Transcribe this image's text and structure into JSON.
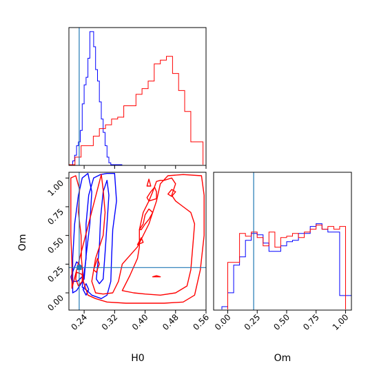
{
  "figure": {
    "background": "#ffffff"
  },
  "colors": {
    "blue": "#0000ff",
    "red": "#ff0000",
    "truth": "#1f77b4",
    "axis": "#000000"
  },
  "chart_data": [
    {
      "type": "histogram",
      "panel": "H0 marginal",
      "xlim": [
        0.2,
        0.56
      ],
      "truth": 0.227,
      "series": [
        {
          "name": "",
          "color": "#0000ff",
          "bin_edges": [
            0.2,
            0.205,
            0.21,
            0.215,
            0.22,
            0.225,
            0.23,
            0.235,
            0.24,
            0.245,
            0.25,
            0.255,
            0.26,
            0.265,
            0.27,
            0.275,
            0.28,
            0.285,
            0.29,
            0.295,
            0.3,
            0.305,
            0.31,
            0.315,
            0.32,
            0.325,
            0.33,
            0.335,
            0.34
          ],
          "counts": [
            0,
            0,
            2,
            5,
            10,
            12,
            18,
            32,
            42,
            46,
            56,
            70,
            70,
            62,
            50,
            44,
            33,
            24,
            17,
            10,
            4,
            1,
            0,
            0,
            0,
            0,
            0,
            0
          ]
        },
        {
          "name": "",
          "color": "#ff0000",
          "bin_edges": [
            0.2,
            0.216,
            0.232,
            0.248,
            0.264,
            0.28,
            0.296,
            0.312,
            0.328,
            0.344,
            0.36,
            0.376,
            0.392,
            0.408,
            0.424,
            0.44,
            0.456,
            0.472,
            0.488,
            0.504,
            0.52,
            0.536,
            0.552
          ],
          "counts": [
            0,
            4,
            10,
            10,
            15,
            19,
            21,
            24,
            25,
            31,
            31,
            37,
            40,
            44,
            53,
            55,
            57,
            48,
            39,
            28,
            12,
            12
          ]
        }
      ]
    },
    {
      "type": "contour",
      "panel": "H0 vs Om",
      "xlabel": "H0",
      "ylabel": "Om",
      "xlim": [
        0.2,
        0.56
      ],
      "ylim": [
        -0.15,
        1.05
      ],
      "xticks": [
        "0.24",
        "0.32",
        "0.40",
        "0.48",
        "0.56"
      ],
      "yticks": [
        "0.00",
        "0.25",
        "0.50",
        "0.75",
        "1.00"
      ],
      "truth": {
        "x": 0.227,
        "y": 0.22
      },
      "series": [
        {
          "name": "",
          "color": "#0000ff",
          "contours": [
            [
              [
                0.21,
                0.0
              ],
              [
                0.21,
                0.3
              ],
              [
                0.215,
                0.6
              ],
              [
                0.225,
                0.85
              ],
              [
                0.235,
                1.0
              ],
              [
                0.25,
                1.04
              ],
              [
                0.26,
                0.88
              ],
              [
                0.255,
                0.6
              ],
              [
                0.245,
                0.32
              ],
              [
                0.24,
                0.12
              ],
              [
                0.22,
                0.02
              ]
            ],
            [
              [
                0.235,
                0.05
              ],
              [
                0.245,
                0.3
              ],
              [
                0.245,
                0.6
              ],
              [
                0.252,
                0.85
              ],
              [
                0.265,
                1.0
              ],
              [
                0.283,
                1.03
              ],
              [
                0.3,
                1.04
              ],
              [
                0.32,
                1.04
              ],
              [
                0.325,
                0.8
              ],
              [
                0.315,
                0.55
              ],
              [
                0.312,
                0.3
              ],
              [
                0.31,
                0.1
              ],
              [
                0.3,
                -0.02
              ],
              [
                0.285,
                -0.05
              ],
              [
                0.26,
                -0.02
              ],
              [
                0.248,
                0.02
              ]
            ],
            [
              [
                0.272,
                0.12
              ],
              [
                0.28,
                0.4
              ],
              [
                0.283,
                0.65
              ],
              [
                0.29,
                0.88
              ],
              [
                0.3,
                0.98
              ],
              [
                0.305,
                0.85
              ],
              [
                0.3,
                0.6
              ],
              [
                0.295,
                0.35
              ],
              [
                0.29,
                0.12
              ],
              [
                0.28,
                0.08
              ]
            ],
            [
              [
                0.205,
                0.14
              ],
              [
                0.22,
                0.27
              ],
              [
                0.236,
                0.22
              ],
              [
                0.235,
                0.14
              ],
              [
                0.222,
                0.1
              ],
              [
                0.208,
                0.1
              ]
            ],
            [
              [
                0.237,
                0.03
              ],
              [
                0.245,
                0.08
              ],
              [
                0.252,
                0.03
              ],
              [
                0.245,
                -0.02
              ]
            ]
          ]
        },
        {
          "name": "",
          "color": "#ff0000",
          "contours": [
            [
              [
                0.208,
                0.04
              ],
              [
                0.208,
                0.25
              ],
              [
                0.205,
                0.5
              ],
              [
                0.205,
                0.75
              ],
              [
                0.205,
                1.0
              ],
              [
                0.218,
                1.02
              ],
              [
                0.228,
                0.9
              ],
              [
                0.225,
                0.7
              ],
              [
                0.232,
                0.5
              ],
              [
                0.233,
                0.3
              ],
              [
                0.238,
                0.1
              ],
              [
                0.25,
                -0.02
              ],
              [
                0.27,
                -0.05
              ],
              [
                0.3,
                -0.08
              ],
              [
                0.35,
                -0.09
              ],
              [
                0.4,
                -0.09
              ],
              [
                0.45,
                -0.09
              ],
              [
                0.5,
                -0.08
              ],
              [
                0.53,
                -0.02
              ],
              [
                0.545,
                0.2
              ],
              [
                0.555,
                0.5
              ],
              [
                0.555,
                0.85
              ],
              [
                0.548,
                1.02
              ],
              [
                0.5,
                1.03
              ],
              [
                0.46,
                1.02
              ],
              [
                0.44,
                0.95
              ],
              [
                0.43,
                0.8
              ],
              [
                0.41,
                0.6
              ],
              [
                0.38,
                0.4
              ],
              [
                0.34,
                0.25
              ],
              [
                0.33,
                0.1
              ],
              [
                0.315,
                0.0
              ],
              [
                0.29,
                -0.01
              ],
              [
                0.27,
                0.0
              ],
              [
                0.26,
                0.1
              ],
              [
                0.27,
                0.3
              ],
              [
                0.29,
                0.5
              ],
              [
                0.295,
                0.7
              ],
              [
                0.29,
                0.9
              ],
              [
                0.285,
                1.03
              ]
            ],
            [
              [
                0.22,
                0.18
              ],
              [
                0.218,
                0.12
              ],
              [
                0.225,
                0.06
              ],
              [
                0.235,
                0.1
              ],
              [
                0.235,
                0.16
              ]
            ],
            [
              [
                0.265,
                0.2
              ],
              [
                0.275,
                0.3
              ],
              [
                0.28,
                0.25
              ],
              [
                0.272,
                0.18
              ]
            ],
            [
              [
                0.34,
                0.02
              ],
              [
                0.36,
                0.15
              ],
              [
                0.38,
                0.3
              ],
              [
                0.385,
                0.4
              ],
              [
                0.385,
                0.55
              ],
              [
                0.395,
                0.7
              ],
              [
                0.41,
                0.8
              ],
              [
                0.42,
                0.88
              ],
              [
                0.43,
                0.97
              ],
              [
                0.44,
                0.98
              ],
              [
                0.45,
                0.98
              ],
              [
                0.47,
                1.0
              ],
              [
                0.48,
                0.95
              ],
              [
                0.47,
                0.85
              ],
              [
                0.48,
                0.8
              ],
              [
                0.5,
                0.75
              ],
              [
                0.52,
                0.7
              ],
              [
                0.53,
                0.6
              ],
              [
                0.525,
                0.4
              ],
              [
                0.52,
                0.2
              ],
              [
                0.51,
                0.06
              ],
              [
                0.48,
                0.0
              ],
              [
                0.44,
                -0.02
              ],
              [
                0.4,
                -0.01
              ],
              [
                0.37,
                0.0
              ]
            ],
            [
              [
                0.385,
                0.55
              ],
              [
                0.395,
                0.6
              ],
              [
                0.4,
                0.68
              ],
              [
                0.41,
                0.73
              ],
              [
                0.42,
                0.7
              ],
              [
                0.41,
                0.64
              ],
              [
                0.4,
                0.6
              ],
              [
                0.39,
                0.55
              ]
            ],
            [
              [
                0.41,
                0.8
              ],
              [
                0.43,
                0.82
              ],
              [
                0.43,
                0.88
              ],
              [
                0.425,
                0.92
              ],
              [
                0.415,
                0.88
              ],
              [
                0.405,
                0.83
              ]
            ],
            [
              [
                0.46,
                0.86
              ],
              [
                0.47,
                0.9
              ],
              [
                0.48,
                0.88
              ],
              [
                0.47,
                0.84
              ]
            ],
            [
              [
                0.405,
                0.93
              ],
              [
                0.41,
                0.99
              ],
              [
                0.415,
                0.93
              ]
            ],
            [
              [
                0.38,
                0.42
              ],
              [
                0.39,
                0.48
              ],
              [
                0.395,
                0.44
              ]
            ],
            [
              [
                0.42,
                0.14
              ],
              [
                0.43,
                0.15
              ],
              [
                0.44,
                0.14
              ]
            ]
          ]
        }
      ]
    },
    {
      "type": "histogram",
      "panel": "Om marginal",
      "xlabel": "Om",
      "xlim": [
        -0.12,
        1.05
      ],
      "xticks": [
        "0.00",
        "0.25",
        "0.50",
        "0.75",
        "1.00"
      ],
      "truth": 0.22,
      "series": [
        {
          "name": "",
          "color": "#0000ff",
          "bin_edges": [
            -0.05,
            0.0,
            0.05,
            0.1,
            0.15,
            0.2,
            0.25,
            0.3,
            0.35,
            0.4,
            0.45,
            0.5,
            0.55,
            0.6,
            0.65,
            0.7,
            0.75,
            0.8,
            0.85,
            0.9,
            0.95,
            1.0,
            1.05
          ],
          "counts": [
            2,
            12,
            32,
            38,
            50,
            55,
            54,
            48,
            42,
            42,
            46,
            49,
            50,
            55,
            55,
            60,
            62,
            58,
            56,
            56,
            10,
            10
          ]
        },
        {
          "name": "",
          "color": "#ff0000",
          "bin_edges": [
            0.0,
            0.05,
            0.1,
            0.15,
            0.2,
            0.25,
            0.3,
            0.35,
            0.4,
            0.45,
            0.5,
            0.55,
            0.6,
            0.65,
            0.7,
            0.75,
            0.8,
            0.85,
            0.9,
            0.95,
            1.0
          ],
          "counts": [
            34,
            34,
            55,
            53,
            56,
            52,
            46,
            56,
            45,
            52,
            53,
            55,
            52,
            56,
            58,
            61,
            58,
            60,
            58,
            60
          ]
        }
      ]
    }
  ]
}
